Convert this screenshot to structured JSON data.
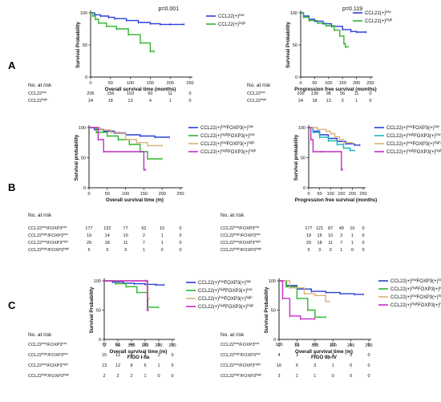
{
  "panel_labels": [
    "A",
    "B",
    "C"
  ],
  "risk_title": "No. at risk",
  "colors": {
    "blue": "#2a3fd6",
    "green": "#2fb52f",
    "tan": "#d9b27c",
    "magenta": "#c42cc4",
    "teal": "#1bb7bf",
    "axis": "#222222"
  },
  "chart_data": [
    {
      "id": "A-left",
      "type": "line",
      "panel": "A",
      "xlabel": "Overall survival time (months)",
      "ylabel": "Survival Probability",
      "annotation": "p=0.001",
      "xlim": [
        0,
        250
      ],
      "ylim": [
        0,
        100
      ],
      "xticks": [
        0,
        50,
        100,
        150,
        200,
        250
      ],
      "yticks": [
        0,
        50,
        100
      ],
      "legend_position": "top-right",
      "series": [
        {
          "name": "CCL22(+)low",
          "legend_base": "CCL22(+)",
          "legend_sup": "low",
          "color": "#2a3fd6",
          "x": [
            0,
            10,
            25,
            45,
            60,
            90,
            120,
            150,
            175,
            200,
            235
          ],
          "y": [
            100,
            97,
            95,
            93,
            91,
            88,
            85,
            83,
            82,
            82,
            82
          ]
        },
        {
          "name": "CCL22(+)high",
          "legend_base": "CCL22(+)",
          "legend_sup": "high",
          "color": "#2fb52f",
          "x": [
            0,
            5,
            12,
            20,
            40,
            65,
            95,
            125,
            150,
            160
          ],
          "y": [
            100,
            95,
            90,
            84,
            79,
            75,
            66,
            53,
            40,
            40
          ]
        }
      ],
      "risk_table": {
        "rows": [
          {
            "label": "CCL22",
            "sup": "low",
            "values": [
              "206",
              "156",
              "103",
              "60",
              "11",
              "0"
            ]
          },
          {
            "label": "CCL22",
            "sup": "high",
            "values": [
              "24",
              "18",
              "13",
              "4",
              "1",
              "0"
            ]
          }
        ]
      }
    },
    {
      "id": "A-right",
      "type": "line",
      "panel": "A",
      "xlabel": "Progression free survival (months)",
      "ylabel": "Survival Probability",
      "annotation": "p=0.119",
      "xlim": [
        0,
        250
      ],
      "ylim": [
        0,
        100
      ],
      "xticks": [
        0,
        50,
        100,
        150,
        200,
        250
      ],
      "yticks": [
        0,
        50,
        100
      ],
      "legend_position": "top-right",
      "series": [
        {
          "name": "CCL22(+)low",
          "legend_base": "CCL22(+)",
          "legend_sup": "low",
          "color": "#2a3fd6",
          "x": [
            0,
            10,
            30,
            50,
            80,
            110,
            150,
            180,
            200,
            235
          ],
          "y": [
            100,
            95,
            90,
            87,
            83,
            79,
            74,
            71,
            70,
            70
          ]
        },
        {
          "name": "CCL22(+)high",
          "legend_base": "CCL22(+)",
          "legend_sup": "high",
          "color": "#2fb52f",
          "x": [
            0,
            10,
            30,
            60,
            90,
            120,
            140,
            155,
            160,
            170
          ],
          "y": [
            100,
            93,
            88,
            84,
            80,
            73,
            64,
            52,
            47,
            47
          ]
        }
      ],
      "risk_table": {
        "rows": [
          {
            "label": "CCL22",
            "sup": "low",
            "values": [
              "200",
              "139",
              "98",
              "56",
              "11",
              "0"
            ]
          },
          {
            "label": "CCL22",
            "sup": "high",
            "values": [
              "24",
              "18",
              "13",
              "3",
              "1",
              "0"
            ]
          }
        ]
      }
    },
    {
      "id": "B-left",
      "type": "line",
      "panel": "B",
      "xlabel": "Overall survival time (m)",
      "ylabel": "Survival probability",
      "xlim": [
        0,
        250
      ],
      "ylim": [
        0,
        100
      ],
      "xticks": [
        0,
        50,
        100,
        150,
        200,
        250
      ],
      "yticks": [
        0,
        50,
        100
      ],
      "legend_position": "right",
      "series": [
        {
          "name": "CCL22(+)lowFOXP3(+)low",
          "legend_base": "CCL22(+)",
          "legend_sup": "low",
          "legend_mid": "FOXP3(+)",
          "legend_sup2": "low",
          "color": "#2a3fd6",
          "x": [
            0,
            15,
            40,
            70,
            100,
            140,
            180,
            220
          ],
          "y": [
            100,
            97,
            94,
            91,
            88,
            86,
            84,
            84
          ]
        },
        {
          "name": "CCL22(+)highFOXP3(+)low",
          "legend_base": "CCL22(+)",
          "legend_sup": "high",
          "legend_mid": "FOXP3(+)",
          "legend_sup2": "low",
          "color": "#2fb52f",
          "x": [
            0,
            20,
            50,
            80,
            110,
            140,
            160,
            200
          ],
          "y": [
            100,
            92,
            86,
            80,
            72,
            60,
            48,
            48
          ]
        },
        {
          "name": "CCL22(+)lowFOXP3(+)high",
          "legend_base": "CCL22(+)",
          "legend_sup": "low",
          "legend_mid": "FOXP3(+)",
          "legend_sup2": "high",
          "color": "#d9b27c",
          "x": [
            0,
            30,
            60,
            90,
            100,
            130,
            160,
            200
          ],
          "y": [
            100,
            96,
            92,
            90,
            80,
            75,
            70,
            70
          ]
        },
        {
          "name": "CCL22(+)highFOXP3(+)high",
          "legend_base": "CCL22(+)",
          "legend_sup": "high",
          "legend_mid": "FOXP3(+)",
          "legend_sup2": "high",
          "color": "#c42cc4",
          "x": [
            0,
            25,
            40,
            150,
            155
          ],
          "y": [
            100,
            80,
            60,
            30,
            30
          ]
        }
      ],
      "risk_table": {
        "rows": [
          {
            "label": "CCL22",
            "sup": "low",
            "mid": "/FOXP3",
            "sup2": "low",
            "values": [
              "177",
              "132",
              "77",
              "52",
              "10",
              "0"
            ]
          },
          {
            "label": "CCL22",
            "sup": "high",
            "mid": "/FOXP3",
            "sup2": "low",
            "values": [
              "19",
              "14",
              "10",
              "2",
              "1",
              "0"
            ]
          },
          {
            "label": "CCL22",
            "sup": "low",
            "mid": "/FOXP3",
            "sup2": "high",
            "values": [
              "29",
              "18",
              "11",
              "7",
              "1",
              "0"
            ]
          },
          {
            "label": "CCL22",
            "sup": "high",
            "mid": "/FOXP3",
            "sup2": "high",
            "values": [
              "5",
              "3",
              "3",
              "1",
              "0",
              "0"
            ]
          }
        ]
      }
    },
    {
      "id": "B-right",
      "type": "line",
      "panel": "B",
      "xlabel": "Progression free survival (months)",
      "ylabel": "Survival probability",
      "xlim": [
        0,
        250
      ],
      "ylim": [
        0,
        100
      ],
      "xticks": [
        0,
        50,
        100,
        150,
        200,
        250
      ],
      "yticks": [
        0,
        50,
        100
      ],
      "legend_position": "right",
      "series": [
        {
          "name": "CCL22(+)lowFOXP3(+)low",
          "legend_base": "CCL22(+)",
          "legend_sup": "low",
          "legend_mid": "FOXP3(+)",
          "legend_sup2": "low",
          "color": "#2a3fd6",
          "x": [
            0,
            20,
            50,
            90,
            130,
            170,
            210,
            235
          ],
          "y": [
            100,
            94,
            88,
            82,
            77,
            73,
            71,
            71
          ]
        },
        {
          "name": "CCL22(+)highFOXP3(+)low",
          "legend_base": "CCL22(+)",
          "legend_sup": "high",
          "legend_mid": "FOXP3(+)",
          "legend_sup2": "low",
          "color": "#1bb7bf",
          "x": [
            0,
            20,
            50,
            90,
            130,
            160,
            190,
            210
          ],
          "y": [
            100,
            92,
            84,
            78,
            72,
            66,
            62,
            62
          ]
        },
        {
          "name": "CCL22(+)lowFOXP3(+)high",
          "legend_base": "CCL22(+)",
          "legend_sup": "low",
          "legend_mid": "FOXP3(+)",
          "legend_sup2": "high",
          "color": "#d9b27c",
          "x": [
            0,
            40,
            80,
            100,
            120,
            140,
            160,
            200
          ],
          "y": [
            100,
            97,
            94,
            90,
            85,
            80,
            75,
            75
          ]
        },
        {
          "name": "CCL22(+)highFOXP3(+)high",
          "legend_base": "CCL22(+)",
          "legend_sup": "high",
          "legend_mid": "FOXP3(+)",
          "legend_sup2": "high",
          "color": "#c42cc4",
          "x": [
            0,
            10,
            20,
            60,
            150,
            155
          ],
          "y": [
            100,
            80,
            60,
            60,
            30,
            30
          ]
        }
      ],
      "risk_table": {
        "rows": [
          {
            "label": "CCL22",
            "sup": "low",
            "mid": "/FOXP3",
            "sup2": "low",
            "values": [
              "177",
              "121",
              "87",
              "49",
              "10",
              "0"
            ]
          },
          {
            "label": "CCL22",
            "sup": "high",
            "mid": "/FOXP3",
            "sup2": "low",
            "values": [
              "19",
              "15",
              "10",
              "2",
              "1",
              "0"
            ]
          },
          {
            "label": "CCL22",
            "sup": "low",
            "mid": "/FOXP3",
            "sup2": "high",
            "values": [
              "29",
              "18",
              "11",
              "7",
              "1",
              "0"
            ]
          },
          {
            "label": "CCL22",
            "sup": "high",
            "mid": "/FOXP3",
            "sup2": "high",
            "values": [
              "5",
              "3",
              "3",
              "1",
              "0",
              "0"
            ]
          }
        ]
      }
    },
    {
      "id": "C-left",
      "type": "line",
      "panel": "C",
      "xlabel": "Overall survival time (m)",
      "subtitle": "FIGO I-IIa",
      "ylabel": "Survival Probability",
      "xlim": [
        0,
        250
      ],
      "ylim": [
        0,
        100
      ],
      "xticks": [
        0,
        50,
        100,
        150,
        200,
        250
      ],
      "yticks": [
        0,
        50,
        100
      ],
      "legend_position": "top-right",
      "series": [
        {
          "name": "CCL22(+)lowFOXP3(+)low",
          "legend_base": "CCL22(+)",
          "legend_sup": "low",
          "legend_mid": "FOXP3(+)",
          "legend_sup2": "low",
          "color": "#2a3fd6",
          "x": [
            0,
            30,
            70,
            110,
            150,
            190,
            220
          ],
          "y": [
            100,
            98,
            96,
            95,
            94,
            93,
            93
          ]
        },
        {
          "name": "CCL22(+)highFOXP3(+)low",
          "legend_base": "CCL22(+)",
          "legend_sup": "high",
          "legend_mid": "FOXP3(+)",
          "legend_sup2": "low",
          "color": "#2fb52f",
          "x": [
            0,
            40,
            80,
            120,
            160,
            200
          ],
          "y": [
            100,
            95,
            90,
            80,
            55,
            55
          ]
        },
        {
          "name": "CCL22(+)lowFOXP3(+)high",
          "legend_base": "CCL22(+)",
          "legend_sup": "low",
          "legend_mid": "FOXP3(+)",
          "legend_sup2": "high",
          "color": "#d9b27c",
          "x": [
            0,
            60,
            120,
            150,
            160,
            165
          ],
          "y": [
            100,
            100,
            100,
            100,
            70,
            70
          ]
        },
        {
          "name": "CCL22(+)highFOXP3(+)high",
          "legend_base": "CCL22(+)",
          "legend_sup": "high",
          "legend_mid": "FOXP3(+)",
          "legend_sup2": "high",
          "color": "#c42cc4",
          "x": [
            0,
            155,
            158,
            162
          ],
          "y": [
            100,
            100,
            50,
            50
          ]
        }
      ],
      "risk_table": {
        "rows": [
          {
            "label": "CCL22",
            "sup": "low",
            "mid": "/FOXP3",
            "sup2": "low",
            "values": [
              "72",
              "61",
              "44",
              "30",
              "9",
              "0"
            ]
          },
          {
            "label": "CCL22",
            "sup": "high",
            "mid": "/FOXP3",
            "sup2": "low",
            "values": [
              "15",
              "12",
              "8",
              "2",
              "1",
              "0"
            ]
          },
          {
            "label": "CCL22",
            "sup": "low",
            "mid": "/FOXP3",
            "sup2": "high",
            "values": [
              "13",
              "12",
              "8",
              "6",
              "1",
              "0"
            ]
          },
          {
            "label": "CCL22",
            "sup": "high",
            "mid": "/FOXP3",
            "sup2": "high",
            "values": [
              "2",
              "2",
              "2",
              "1",
              "0",
              "0"
            ]
          }
        ]
      }
    },
    {
      "id": "C-right",
      "type": "line",
      "panel": "C",
      "xlabel": "Overall survival time (m)",
      "subtitle": "FIGO IIb-IV",
      "ylabel": "Survival Probability",
      "xlim": [
        0,
        250
      ],
      "ylim": [
        0,
        100
      ],
      "xticks": [
        0,
        50,
        100,
        150,
        200,
        250
      ],
      "yticks": [
        0,
        50,
        100
      ],
      "legend_position": "right",
      "series": [
        {
          "name": "CCL22(+)lowFOXP3(+)low",
          "legend_base": "CCL22(+)",
          "legend_sup": "low",
          "legend_mid": "FOXP3(+)",
          "legend_sup2": "low",
          "color": "#2a3fd6",
          "x": [
            0,
            20,
            50,
            90,
            130,
            170,
            210,
            235
          ],
          "y": [
            100,
            92,
            86,
            82,
            80,
            78,
            77,
            77
          ]
        },
        {
          "name": "CCL22(+)highFOXP3(+)low",
          "legend_base": "CCL22(+)",
          "legend_sup": "high",
          "legend_mid": "FOXP3(+)",
          "legend_sup2": "low",
          "color": "#2fb52f",
          "x": [
            0,
            20,
            50,
            80,
            100,
            130
          ],
          "y": [
            100,
            90,
            70,
            50,
            38,
            38
          ]
        },
        {
          "name": "CCL22(+)lowFOXP3(+)high",
          "legend_base": "CCL22(+)",
          "legend_sup": "low",
          "legend_mid": "FOXP3(+)",
          "legend_sup2": "high",
          "color": "#d9b27c",
          "x": [
            0,
            30,
            70,
            100,
            130,
            140
          ],
          "y": [
            100,
            88,
            78,
            75,
            65,
            65
          ]
        },
        {
          "name": "CCL22(+)highFOXP3(+)high",
          "legend_base": "CCL22(+)",
          "legend_sup": "high",
          "legend_mid": "FOXP3(+)",
          "legend_sup2": "high",
          "color": "#c42cc4",
          "x": [
            0,
            10,
            30,
            60,
            100
          ],
          "y": [
            100,
            70,
            40,
            35,
            35
          ]
        }
      ],
      "risk_table": {
        "rows": [
          {
            "label": "CCL22",
            "sup": "low",
            "mid": "/FOXP3",
            "sup2": "low",
            "values": [
              "105",
              "71",
              "49",
              "23",
              "1",
              "0"
            ]
          },
          {
            "label": "CCL22",
            "sup": "high",
            "mid": "/FOXP3",
            "sup2": "low",
            "values": [
              "4",
              "3",
              "2",
              "1",
              "0",
              "0"
            ]
          },
          {
            "label": "CCL22",
            "sup": "low",
            "mid": "/FOXP3",
            "sup2": "high",
            "values": [
              "16",
              "6",
              "3",
              "1",
              "0",
              "0"
            ]
          },
          {
            "label": "CCL22",
            "sup": "high",
            "mid": "/FOXP3",
            "sup2": "high",
            "values": [
              "3",
              "1",
              "1",
              "0",
              "0",
              "0"
            ]
          }
        ]
      }
    }
  ]
}
